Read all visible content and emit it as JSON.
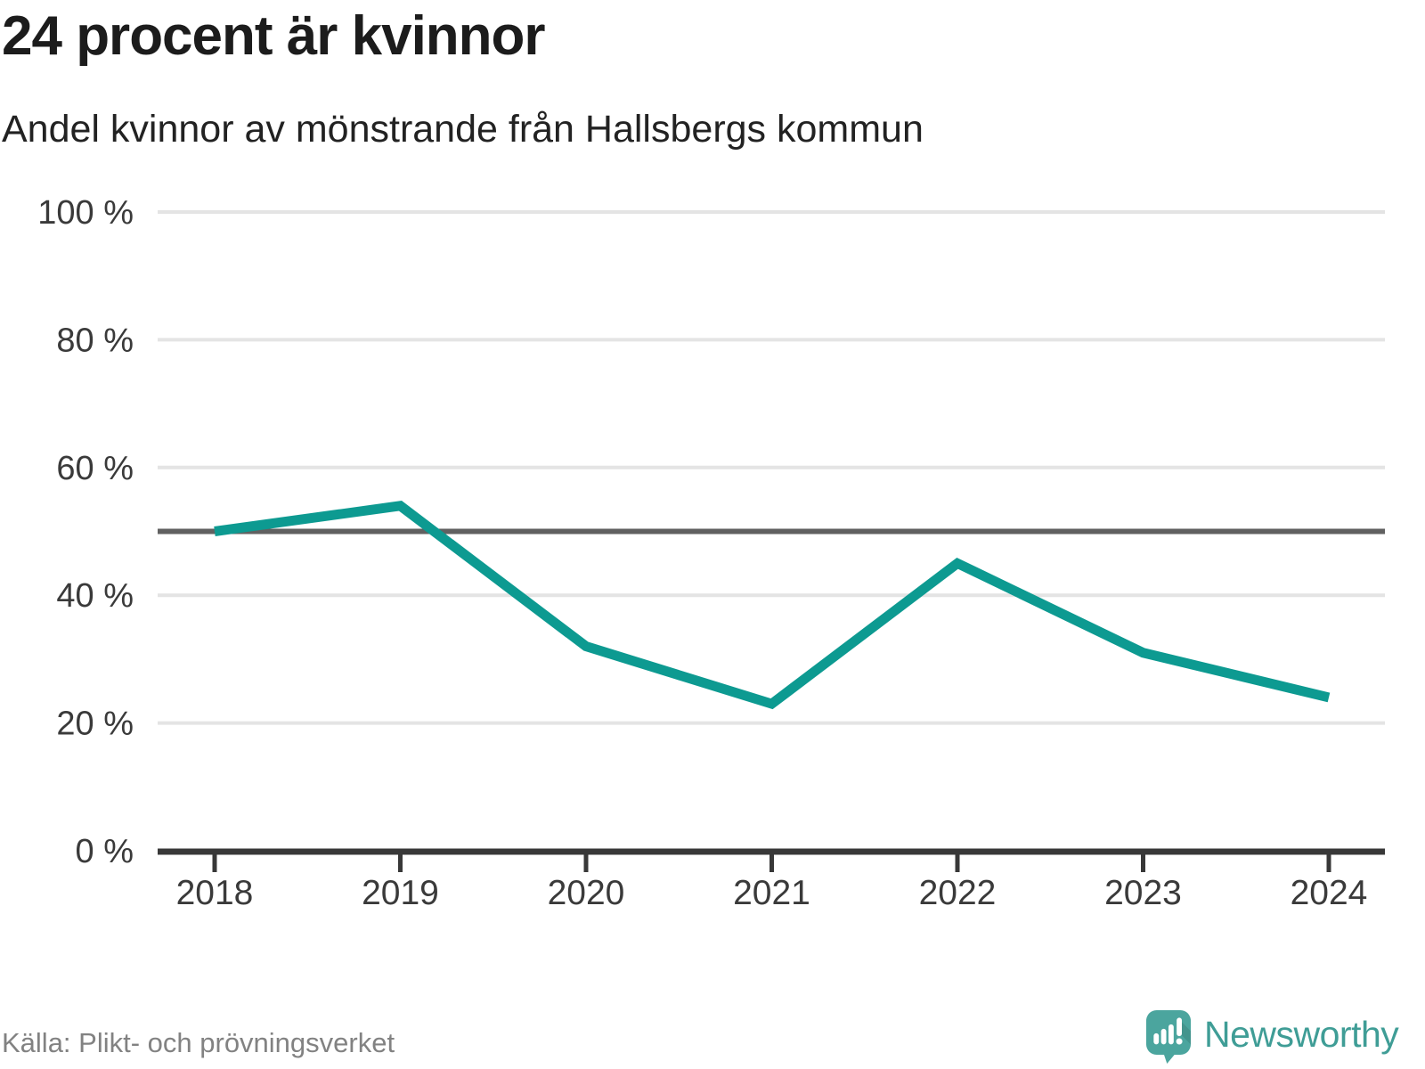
{
  "header": {
    "title": "24 procent är kvinnor",
    "subtitle": "Andel kvinnor av mönstrande från Hallsbergs kommun"
  },
  "chart_data": {
    "type": "line",
    "title": "24 procent är kvinnor",
    "subtitle": "Andel kvinnor av mönstrande från Hallsbergs kommun",
    "categories": [
      "2018",
      "2019",
      "2020",
      "2021",
      "2022",
      "2023",
      "2024"
    ],
    "series": [
      {
        "name": "Andel kvinnor av mönstrande",
        "values": [
          50,
          54,
          32,
          23,
          45,
          31,
          24
        ]
      }
    ],
    "unit": "%",
    "ylim": [
      0,
      100
    ],
    "yticks": [
      0,
      20,
      40,
      60,
      80,
      100
    ],
    "ytick_labels": [
      "0 %",
      "20 %",
      "40 %",
      "60 %",
      "80 %",
      "100 %"
    ],
    "reference_line": 50,
    "grid": true,
    "legend": "none",
    "xlabel": "",
    "ylabel": ""
  },
  "footer": {
    "source": "Källa: Plikt- och prövningsverket",
    "brand": "Newsworthy"
  },
  "colors": {
    "line": "#0d9a91",
    "grid": "#e4e4e4",
    "axis": "#383838",
    "reference": "#616161",
    "tick_text": "#3a3a3a",
    "title": "#1c1c1c",
    "source": "#828282",
    "brand_text": "#3f9d96",
    "brand_icon": "#4ba59e"
  }
}
